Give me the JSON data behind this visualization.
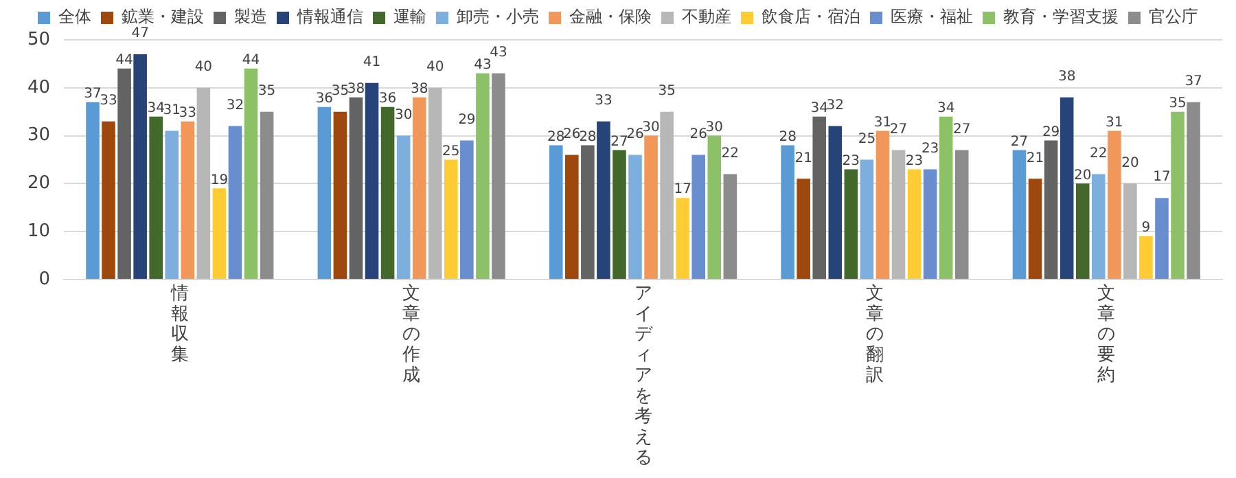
{
  "chart_data": {
    "type": "bar",
    "categories": [
      "情報収集",
      "文章の作成",
      "アイディアを考える",
      "文章の翻訳",
      "文章の要約"
    ],
    "series": [
      {
        "name": "全体",
        "color": "#5b9bd5",
        "values": [
          37,
          36,
          28,
          28,
          27
        ]
      },
      {
        "name": "鉱業・建設",
        "color": "#9e480e",
        "values": [
          33,
          35,
          26,
          21,
          21
        ]
      },
      {
        "name": "製造",
        "color": "#636363",
        "values": [
          44,
          38,
          28,
          34,
          29
        ]
      },
      {
        "name": "情報通信",
        "color": "#264478",
        "values": [
          47,
          41,
          33,
          32,
          38
        ]
      },
      {
        "name": "運輸",
        "color": "#43682b",
        "values": [
          34,
          36,
          27,
          23,
          20
        ]
      },
      {
        "name": "卸売・小売",
        "color": "#7cafdd",
        "values": [
          31,
          30,
          26,
          25,
          22
        ]
      },
      {
        "name": "金融・保険",
        "color": "#f1975a",
        "values": [
          33,
          38,
          30,
          31,
          31
        ]
      },
      {
        "name": "不動産",
        "color": "#b7b7b7",
        "values": [
          40,
          40,
          35,
          27,
          20
        ]
      },
      {
        "name": "飲食店・宿泊",
        "color": "#ffcd33",
        "values": [
          19,
          25,
          17,
          23,
          9
        ]
      },
      {
        "name": "医療・福祉",
        "color": "#698ed0",
        "values": [
          32,
          29,
          26,
          23,
          17
        ]
      },
      {
        "name": "教育・学習支援",
        "color": "#8cc168",
        "values": [
          44,
          43,
          30,
          34,
          35
        ]
      },
      {
        "name": "官公庁",
        "color": "#8c8c8c",
        "values": [
          35,
          43,
          22,
          27,
          37
        ]
      }
    ],
    "ylim": [
      0,
      50
    ],
    "yticks": [
      0,
      10,
      20,
      30,
      40,
      50
    ],
    "grid": "y",
    "legend": "top",
    "data_labels": true
  }
}
